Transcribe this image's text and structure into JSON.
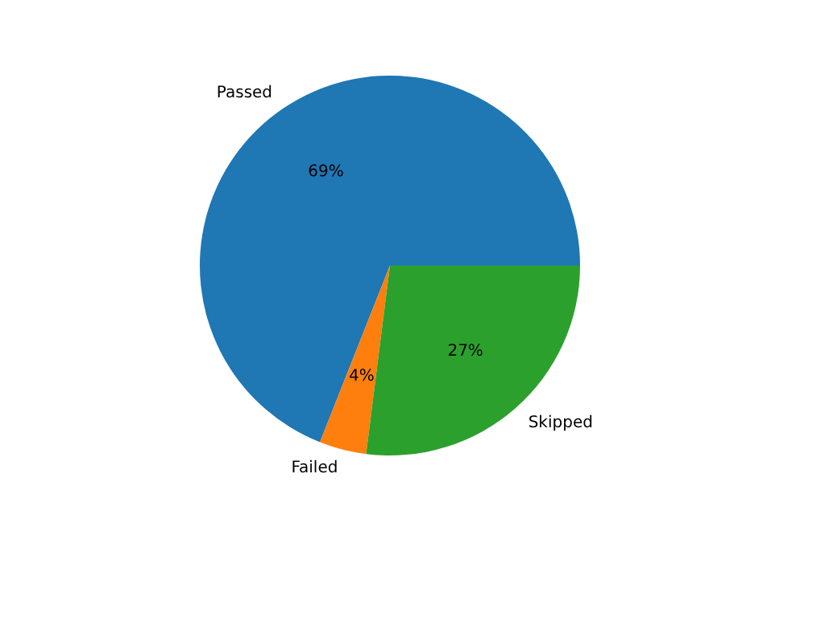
{
  "chart_data": {
    "type": "pie",
    "categories": [
      "Passed",
      "Failed",
      "Skipped"
    ],
    "values": [
      69,
      4,
      27
    ],
    "colors": [
      "#1f77b4",
      "#ff7f0e",
      "#2ca02c"
    ],
    "value_labels": [
      "69%",
      "4%",
      "27%"
    ]
  }
}
